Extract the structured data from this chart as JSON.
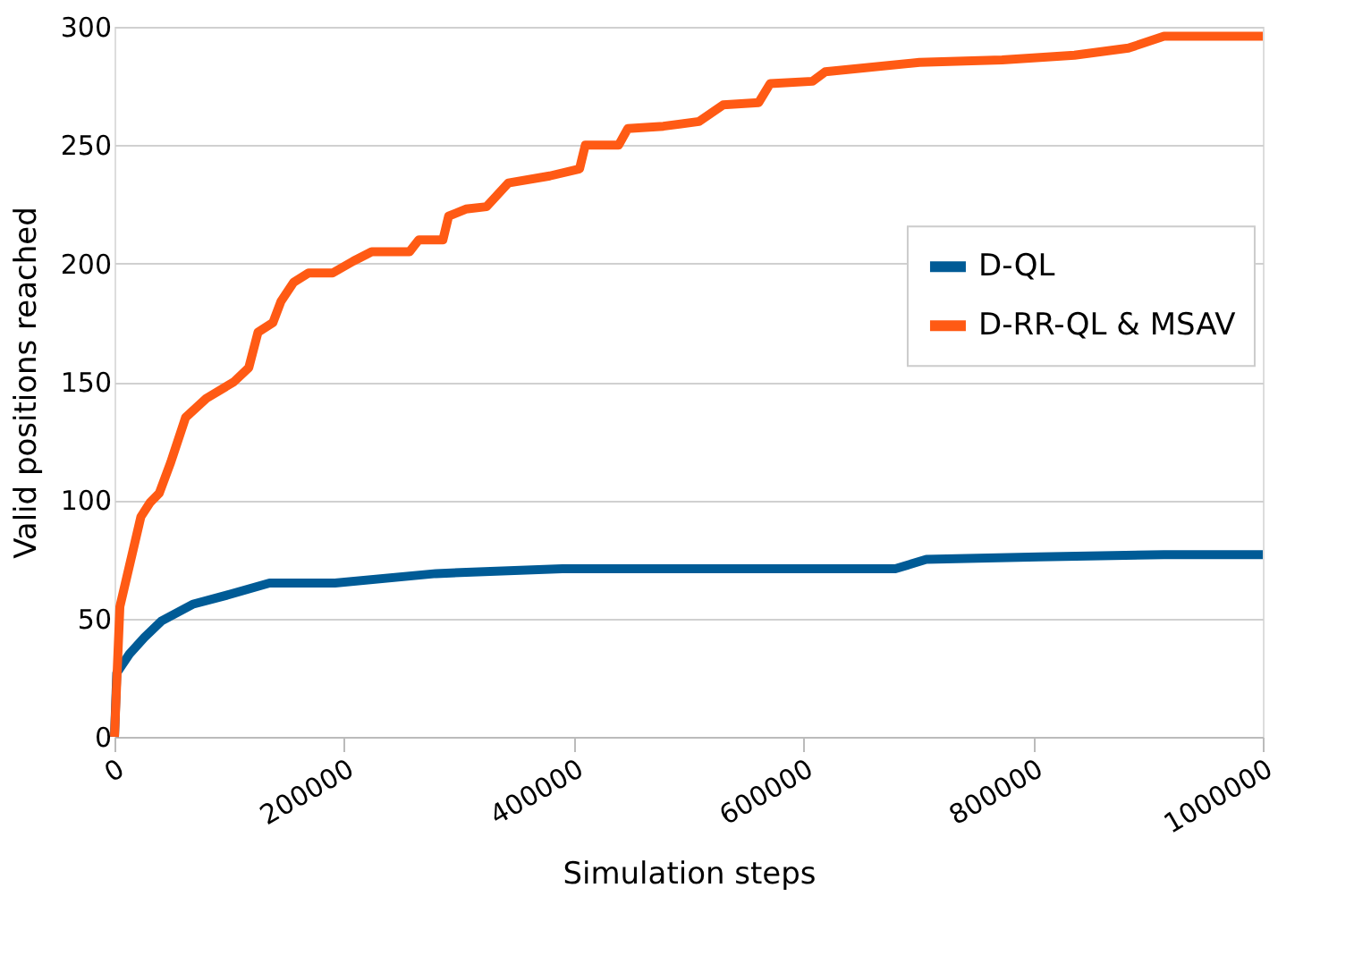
{
  "chart_data": {
    "type": "line",
    "xlabel": "Simulation steps",
    "ylabel": "Valid positions reached",
    "xlim": [
      0,
      1000000
    ],
    "xticks": [
      0,
      200000,
      400000,
      600000,
      800000,
      1000000
    ],
    "ylim": [
      0,
      300
    ],
    "yticks": [
      0,
      50,
      100,
      150,
      200,
      250,
      300
    ],
    "grid": "y",
    "legend": "right",
    "line_style": "solid",
    "marker": "none",
    "series": [
      {
        "name": "D-QL",
        "color": "#005b96",
        "x": [
          0,
          2000,
          13000,
          26000,
          41000,
          68000,
          99000,
          135000,
          192000,
          280000,
          390000,
          561000,
          680000,
          707000,
          805000,
          914000,
          1000000
        ],
        "values": [
          0,
          27,
          35,
          42,
          49,
          56,
          60,
          65,
          65,
          69,
          71,
          71,
          71,
          75,
          76,
          77,
          77
        ]
      },
      {
        "name": "D-RR-QL & MSAV",
        "color": "#ff5a14",
        "x": [
          0,
          4700,
          23000,
          31000,
          39000,
          49000,
          62000,
          80000,
          104000,
          117000,
          125000,
          138000,
          145000,
          156000,
          169000,
          190000,
          208000,
          224000,
          257000,
          265000,
          286000,
          291000,
          306000,
          324000,
          343000,
          379000,
          405000,
          410000,
          439000,
          447000,
          478000,
          509000,
          530000,
          561000,
          571000,
          608000,
          619000,
          701000,
          773000,
          836000,
          883000,
          914000,
          1000000
        ],
        "values": [
          0,
          55,
          93,
          99,
          103,
          116,
          135,
          143,
          150,
          156,
          171,
          175,
          184,
          192,
          196,
          196,
          201,
          205,
          205,
          210,
          210,
          220,
          223,
          224,
          234,
          237,
          240,
          250,
          250,
          257,
          258,
          260,
          267,
          268,
          276,
          277,
          281,
          285,
          286,
          288,
          291,
          296,
          296
        ]
      }
    ]
  }
}
